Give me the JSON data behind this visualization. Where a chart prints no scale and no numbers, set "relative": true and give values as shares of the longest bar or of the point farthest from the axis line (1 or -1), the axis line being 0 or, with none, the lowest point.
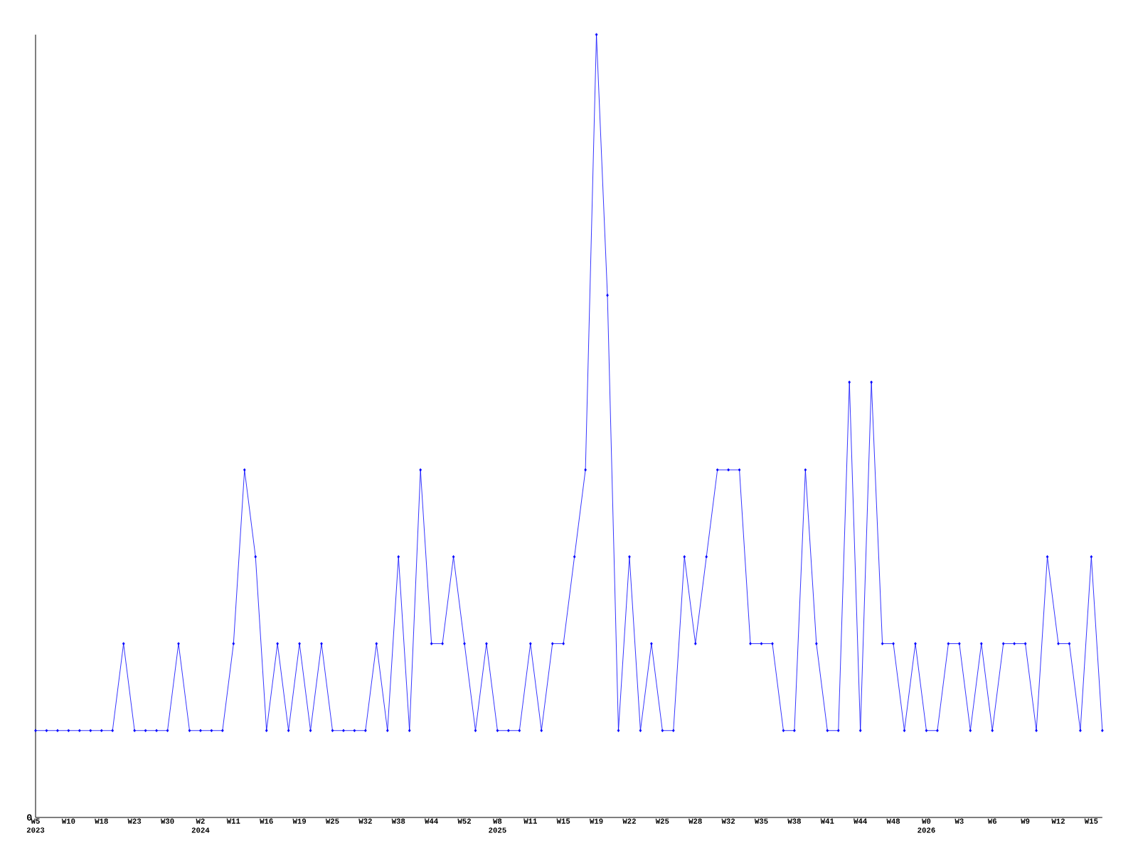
{
  "chart_data": {
    "type": "line",
    "relative": true,
    "color": "#0000ff",
    "marker": "diamond",
    "categories": [
      "W5 2023",
      null,
      null,
      "W10",
      null,
      null,
      "W18",
      null,
      null,
      "W23",
      null,
      null,
      "W30",
      null,
      null,
      "W2 2024",
      null,
      null,
      "W11",
      null,
      null,
      "W16",
      null,
      null,
      "W19",
      null,
      null,
      "W25",
      null,
      null,
      "W32",
      null,
      null,
      "W38",
      null,
      null,
      "W44",
      null,
      null,
      "W52",
      null,
      null,
      "W8 2025",
      null,
      null,
      "W11",
      null,
      null,
      "W15",
      null,
      null,
      "W19",
      null,
      null,
      "W22",
      null,
      null,
      "W25",
      null,
      null,
      "W28",
      null,
      null,
      "W32",
      null,
      null,
      "W35",
      null,
      null,
      "W38",
      null,
      null,
      "W41",
      null,
      null,
      "W44",
      null,
      null,
      "W48",
      null,
      null,
      "W0 2026",
      null,
      null,
      "W3",
      null,
      null,
      "W6",
      null,
      null,
      "W9",
      null,
      null,
      "W12",
      null,
      null,
      "W15",
      null
    ],
    "values": [
      0.111,
      0.111,
      0.111,
      0.111,
      0.111,
      0.111,
      0.111,
      0.111,
      0.222,
      0.111,
      0.111,
      0.111,
      0.111,
      0.222,
      0.111,
      0.111,
      0.111,
      0.111,
      0.222,
      0.444,
      0.333,
      0.111,
      0.222,
      0.111,
      0.222,
      0.111,
      0.222,
      0.111,
      0.111,
      0.111,
      0.111,
      0.222,
      0.111,
      0.333,
      0.111,
      0.444,
      0.222,
      0.222,
      0.333,
      0.222,
      0.111,
      0.222,
      0.111,
      0.111,
      0.111,
      0.222,
      0.111,
      0.222,
      0.222,
      0.333,
      0.444,
      1,
      0.667,
      0.111,
      0.333,
      0.111,
      0.222,
      0.111,
      0.111,
      0.333,
      0.222,
      0.333,
      0.444,
      0.444,
      0.444,
      0.222,
      0.222,
      0.222,
      0.111,
      0.111,
      0.444,
      0.222,
      0.111,
      0.111,
      0.556,
      0.111,
      0.556,
      0.222,
      0.222,
      0.111,
      0.222,
      0.111,
      0.111,
      0.222,
      0.222,
      0.111,
      0.222,
      0.111,
      0.222,
      0.222,
      0.222,
      0.111,
      0.333,
      0.222,
      0.222,
      0.111,
      0.333,
      0.111
    ],
    "annotations": [
      "0"
    ]
  }
}
